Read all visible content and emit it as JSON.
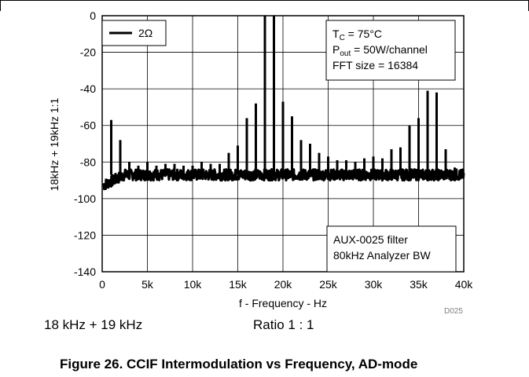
{
  "chart_data": {
    "type": "line",
    "title": "",
    "xlabel": "f - Frequency - Hz",
    "ylabel": "18kHz + 19kHz 1:1",
    "xlim": [
      0,
      40000
    ],
    "ylim": [
      -140,
      0
    ],
    "xticks": [
      0,
      5000,
      10000,
      15000,
      20000,
      25000,
      30000,
      35000,
      40000
    ],
    "xtick_labels": [
      "0",
      "5k",
      "10k",
      "15k",
      "20k",
      "25k",
      "30k",
      "35k",
      "40k"
    ],
    "yticks": [
      0,
      -20,
      -40,
      -60,
      -80,
      -100,
      -120,
      -140
    ],
    "ytick_labels": [
      "0",
      "-20",
      "-40",
      "-60",
      "-80",
      "-100",
      "-120",
      "-140"
    ],
    "grid": true,
    "legend_placement": "top-left",
    "series": [
      {
        "name": "2Ω",
        "noise_floor_db": -87,
        "peaks": [
          {
            "x": 1000,
            "y": -57
          },
          {
            "x": 2000,
            "y": -68
          },
          {
            "x": 3000,
            "y": -80
          },
          {
            "x": 4000,
            "y": -82
          },
          {
            "x": 5000,
            "y": -80
          },
          {
            "x": 6000,
            "y": -82
          },
          {
            "x": 7000,
            "y": -81
          },
          {
            "x": 8000,
            "y": -81
          },
          {
            "x": 9000,
            "y": -82
          },
          {
            "x": 10000,
            "y": -82
          },
          {
            "x": 11000,
            "y": -80
          },
          {
            "x": 12000,
            "y": -81
          },
          {
            "x": 13000,
            "y": -81
          },
          {
            "x": 14000,
            "y": -75
          },
          {
            "x": 15000,
            "y": -71
          },
          {
            "x": 16000,
            "y": -56
          },
          {
            "x": 17000,
            "y": -48
          },
          {
            "x": 18000,
            "y": 0
          },
          {
            "x": 19000,
            "y": 0
          },
          {
            "x": 20000,
            "y": -47
          },
          {
            "x": 21000,
            "y": -55
          },
          {
            "x": 22000,
            "y": -68
          },
          {
            "x": 23000,
            "y": -70
          },
          {
            "x": 24000,
            "y": -75
          },
          {
            "x": 25000,
            "y": -77
          },
          {
            "x": 26000,
            "y": -79
          },
          {
            "x": 27000,
            "y": -79
          },
          {
            "x": 28000,
            "y": -80
          },
          {
            "x": 29000,
            "y": -78
          },
          {
            "x": 30000,
            "y": -77
          },
          {
            "x": 31000,
            "y": -78
          },
          {
            "x": 32000,
            "y": -73
          },
          {
            "x": 33000,
            "y": -72
          },
          {
            "x": 34000,
            "y": -60
          },
          {
            "x": 35000,
            "y": -56
          },
          {
            "x": 36000,
            "y": -41
          },
          {
            "x": 37000,
            "y": -42
          },
          {
            "x": 38000,
            "y": -73
          },
          {
            "x": 39000,
            "y": -83
          }
        ]
      }
    ],
    "legend": {
      "label": "2Ω"
    },
    "annotations": {
      "conditions_lines": [
        {
          "main": "T",
          "sub": "C",
          "rest": " = 75°C"
        },
        {
          "main": "P",
          "sub": "out",
          "rest": " = 50W/channel"
        },
        {
          "main": "FFT size = 16384",
          "sub": "",
          "rest": ""
        }
      ],
      "filter_lines": [
        "AUX-0025 filter",
        "80kHz Analyzer BW"
      ],
      "figure_code": "D025"
    }
  },
  "captions": {
    "left": "18 kHz + 19 kHz",
    "right": "Ratio 1 : 1",
    "figure": "Figure 26. CCIF Intermodulation vs Frequency, AD-mode"
  }
}
